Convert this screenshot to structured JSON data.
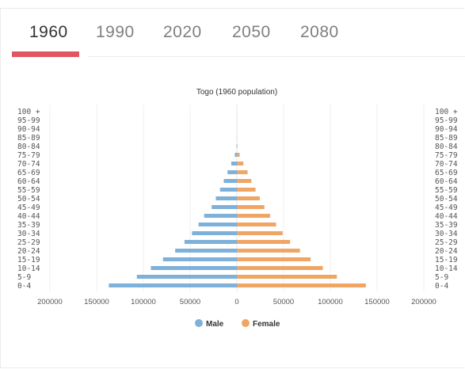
{
  "tabs": [
    {
      "label": "1960",
      "active": true
    },
    {
      "label": "1990",
      "active": false
    },
    {
      "label": "2020",
      "active": false
    },
    {
      "label": "2050",
      "active": false
    },
    {
      "label": "2080",
      "active": false
    }
  ],
  "colors": {
    "male": "#7eb1da",
    "female": "#efa665",
    "active_tab": "#e2545f"
  },
  "chart_data": {
    "type": "bar",
    "orientation": "horizontal-population-pyramid",
    "title": "Togo (1960 population)",
    "categories": [
      "100 +",
      "95-99",
      "90-94",
      "85-89",
      "80-84",
      "75-79",
      "70-74",
      "65-69",
      "60-64",
      "55-59",
      "50-54",
      "45-49",
      "40-44",
      "35-39",
      "30-34",
      "25-29",
      "20-24",
      "15-19",
      "10-14",
      "5-9",
      "0-4"
    ],
    "series": [
      {
        "name": "Male",
        "values": [
          0,
          0,
          0,
          100,
          400,
          2200,
          6000,
          10000,
          14000,
          18000,
          22500,
          27000,
          35000,
          41000,
          48000,
          56000,
          66000,
          79000,
          92000,
          107000,
          137000
        ]
      },
      {
        "name": "Female",
        "values": [
          0,
          0,
          0,
          100,
          500,
          3000,
          7000,
          11500,
          15500,
          20000,
          24500,
          29500,
          35500,
          42000,
          49000,
          57000,
          67500,
          79000,
          92000,
          107000,
          138000
        ]
      }
    ],
    "xlim": [
      -200000,
      200000
    ],
    "x_tick_labels": [
      "200000",
      "150000",
      "100000",
      "50000",
      "0",
      "50000",
      "100000",
      "150000",
      "200000"
    ],
    "x_tick_values": [
      -200000,
      -150000,
      -100000,
      -50000,
      0,
      50000,
      100000,
      150000,
      200000
    ],
    "grid": true,
    "legend": "bottom-center"
  }
}
